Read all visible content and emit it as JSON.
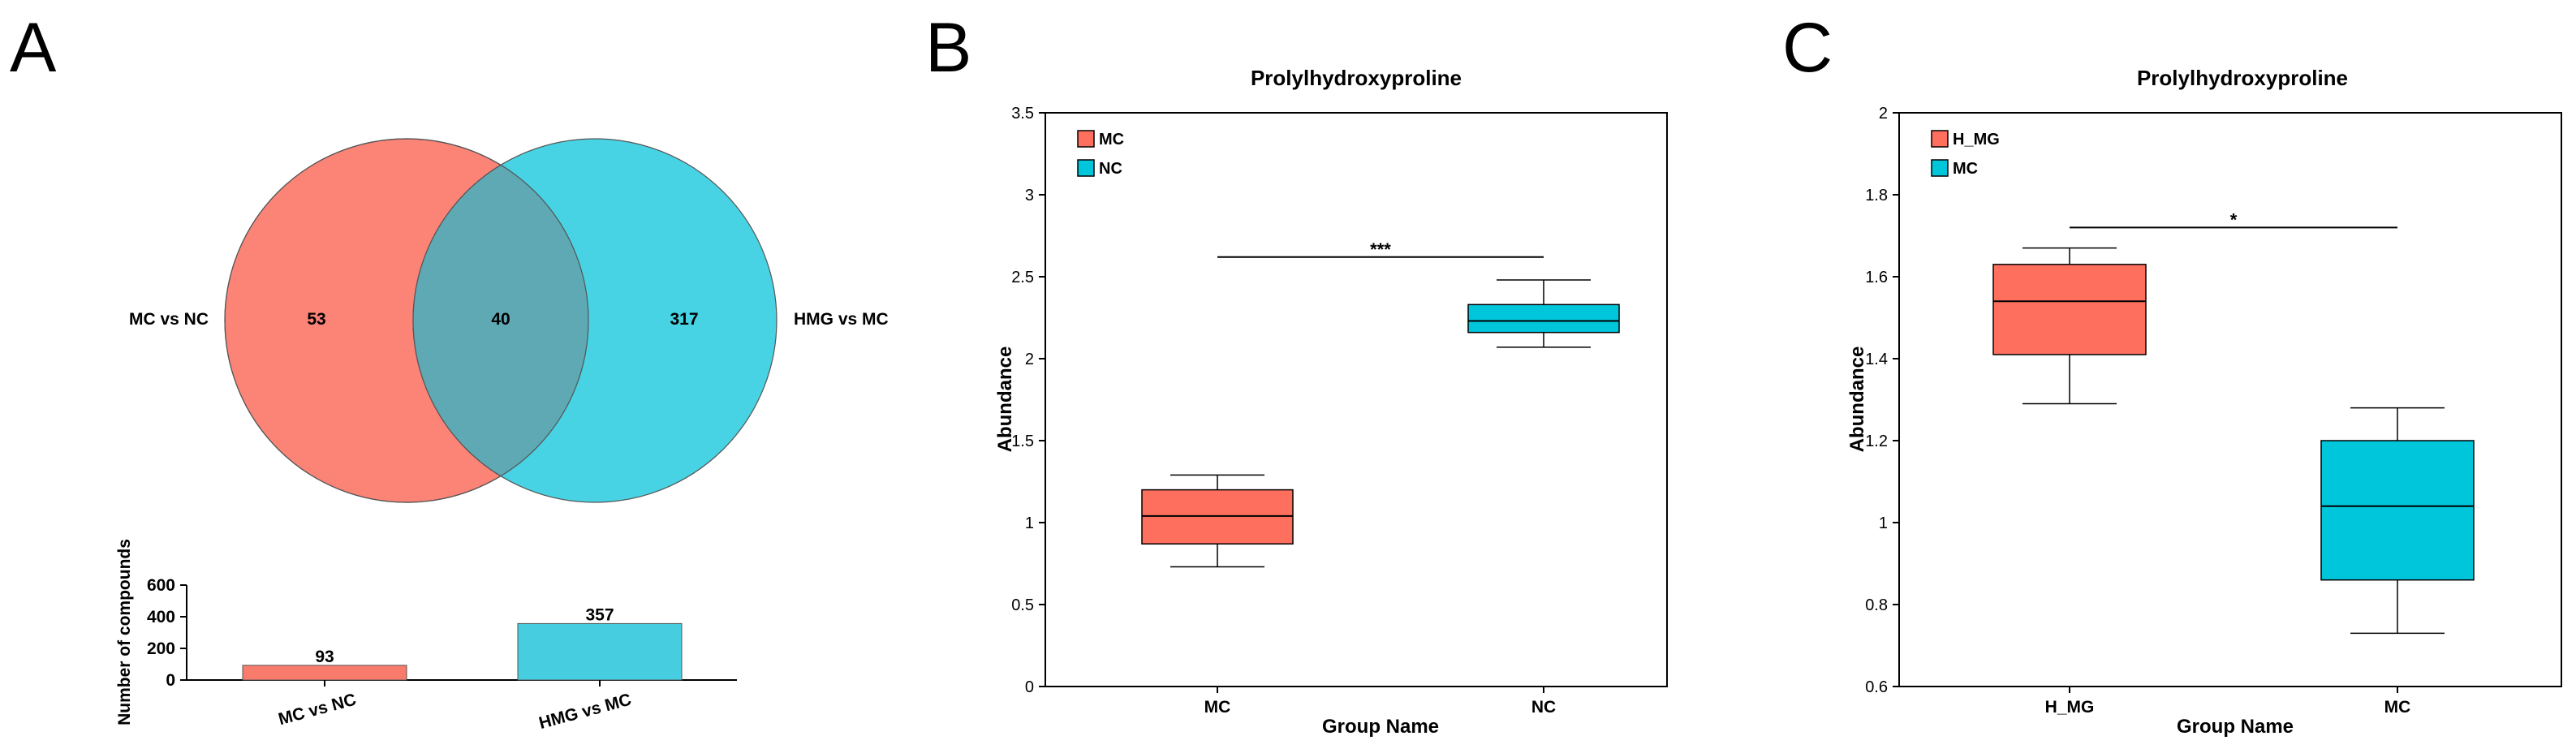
{
  "panels": {
    "a": "A",
    "b": "B",
    "c": "C"
  },
  "colors": {
    "red": "#FA6E5F",
    "cyan": "#19C8DC",
    "overlap": "#5FA9B4",
    "bar_red": "#F87B6C",
    "bar_cyan": "#47CDE0",
    "box_red": "#FF6F5E",
    "box_cyan": "#00C6DB"
  },
  "chart_data": [
    {
      "type": "venn",
      "sets": [
        {
          "name": "MC vs NC",
          "only": 53
        },
        {
          "name": "HMG vs MC",
          "only": 317
        }
      ],
      "intersection": 40
    },
    {
      "type": "bar",
      "categories": [
        "MC vs NC",
        "HMG vs MC"
      ],
      "values": [
        93,
        357
      ],
      "ylabel": "Number of compounds",
      "ylim": [
        0,
        600
      ],
      "yticks": [
        0,
        200,
        400,
        600
      ]
    },
    {
      "type": "box",
      "title": "Prolylhydroxyproline",
      "xlabel": "Group Name",
      "ylabel": "Abundance",
      "ylim": [
        0,
        3.5
      ],
      "yticks": [
        "0",
        "0.5",
        "1",
        "1.5",
        "2",
        "2.5",
        "3",
        "3.5"
      ],
      "groups": [
        {
          "name": "MC",
          "min": 0.73,
          "q1": 0.87,
          "median": 1.04,
          "q3": 1.2,
          "max": 1.29
        },
        {
          "name": "NC",
          "min": 2.07,
          "q1": 2.16,
          "median": 2.23,
          "q3": 2.33,
          "max": 2.48
        }
      ],
      "legend": [
        "MC",
        "NC"
      ],
      "significance": {
        "label": "***",
        "y": 2.62
      }
    },
    {
      "type": "box",
      "title": "Prolylhydroxyproline",
      "xlabel": "Group Name",
      "ylabel": "Abundance",
      "ylim": [
        0.6,
        2.0
      ],
      "yticks": [
        "0.6",
        "0.8",
        "1",
        "1.2",
        "1.4",
        "1.6",
        "1.8",
        "2"
      ],
      "groups": [
        {
          "name": "H_MG",
          "min": 1.29,
          "q1": 1.41,
          "median": 1.54,
          "q3": 1.63,
          "max": 1.67
        },
        {
          "name": "MC",
          "min": 0.73,
          "q1": 0.86,
          "median": 1.04,
          "q3": 1.2,
          "max": 1.28
        }
      ],
      "legend": [
        "H_MG",
        "MC"
      ],
      "significance": {
        "label": "*",
        "y": 1.72
      }
    }
  ]
}
